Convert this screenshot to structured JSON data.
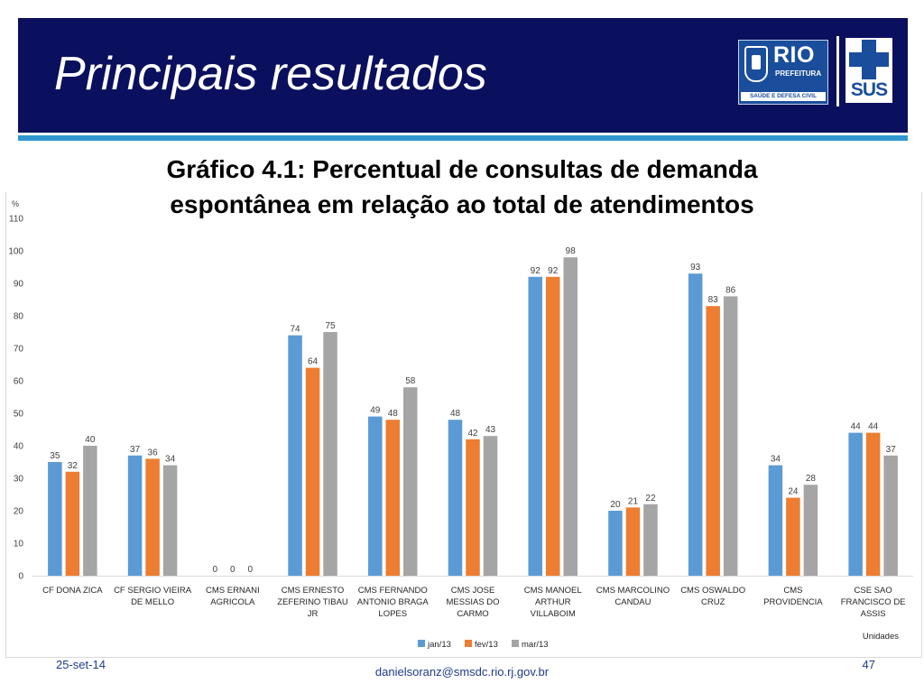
{
  "slide": {
    "title": "Principais resultados",
    "subtitle_line1": "Gráfico 4.1: Percentual de consultas de demanda",
    "subtitle_line2": "espontânea em relação ao total de atendimentos",
    "footer_date": "25-set-14",
    "footer_email": "danielsoranz@smsdc.rio.rj.gov.br",
    "page_number": "47"
  },
  "logos": {
    "rio_text": "RIO",
    "prefeitura_text": "PREFEITURA",
    "rio_strip_text": "SAÚDE E DEFESA CIVIL",
    "sus_text": "SUS"
  },
  "colors": {
    "header_bg": "#0a0f5e",
    "accent_rule": "#2e97d0",
    "jan13": "#5b9bd5",
    "fev13": "#ed7d31",
    "mar13": "#a5a5a5"
  },
  "chart_data": {
    "type": "bar",
    "ylabel": "%",
    "xlabel": "Unidades",
    "ylim": [
      0,
      110
    ],
    "yticks": [
      0,
      10,
      20,
      30,
      40,
      50,
      60,
      70,
      80,
      90,
      100,
      110
    ],
    "grid": false,
    "legend_position": "bottom",
    "categories": [
      [
        "CF DONA ZICA"
      ],
      [
        "CF SERGIO VIEIRA",
        "DE MELLO"
      ],
      [
        "CMS ERNANI",
        "AGRICOLA"
      ],
      [
        "CMS ERNESTO",
        "ZEFERINO TIBAU",
        "JR"
      ],
      [
        "CMS FERNANDO",
        "ANTONIO BRAGA",
        "LOPES"
      ],
      [
        "CMS JOSE",
        "MESSIAS DO",
        "CARMO"
      ],
      [
        "CMS MANOEL",
        "ARTHUR",
        "VILLABOIM"
      ],
      [
        "CMS MARCOLINO",
        "CANDAU"
      ],
      [
        "CMS OSWALDO",
        "CRUZ"
      ],
      [
        "CMS",
        "PROVIDENCIA"
      ],
      [
        "CSE SAO",
        "FRANCISCO DE",
        "ASSIS"
      ]
    ],
    "series": [
      {
        "name": "jan/13",
        "color": "#5b9bd5",
        "values": [
          35,
          37,
          0,
          74,
          49,
          48,
          92,
          20,
          93,
          34,
          44
        ]
      },
      {
        "name": "fev/13",
        "color": "#ed7d31",
        "values": [
          32,
          36,
          0,
          64,
          48,
          42,
          92,
          21,
          83,
          24,
          44
        ]
      },
      {
        "name": "mar/13",
        "color": "#a5a5a5",
        "values": [
          40,
          34,
          0,
          75,
          58,
          43,
          98,
          22,
          86,
          28,
          37
        ]
      }
    ]
  }
}
